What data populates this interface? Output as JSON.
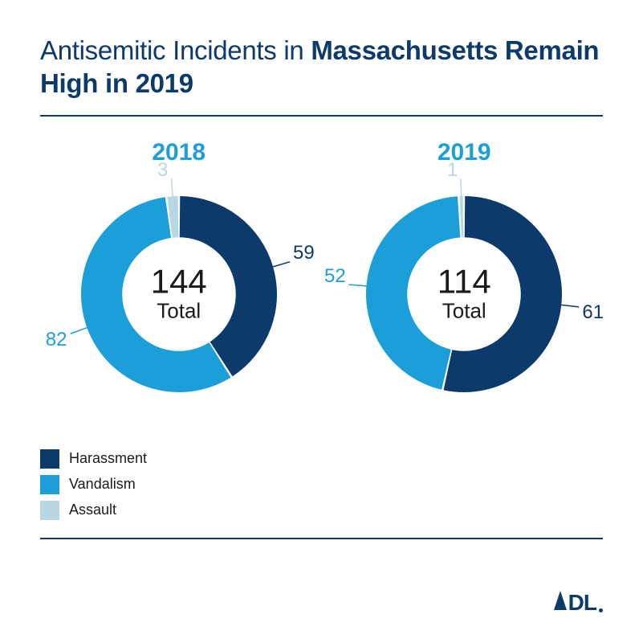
{
  "title": {
    "prefix": "Antisemitic Incidents in ",
    "bold": "Massachusetts Remain High in 2019"
  },
  "colors": {
    "harassment": "#0c3a6a",
    "vandalism": "#1c9ed9",
    "assault": "#b9d6e3",
    "title_color": "#0c3a6a",
    "year_color": "#1c9ed9",
    "rule_color": "#0c3a6a",
    "text_color": "#1a1a1a",
    "background": "#ffffff"
  },
  "typography": {
    "title_fontsize": 33,
    "year_fontsize": 30,
    "center_big_fontsize": 42,
    "center_small_fontsize": 26,
    "callout_fontsize": 24,
    "legend_fontsize": 18
  },
  "donut": {
    "outer_radius": 122,
    "inner_ratio": 0.58,
    "gap_deg": 1.2,
    "start_angle_deg": 0
  },
  "charts": [
    {
      "year": "2018",
      "total_value": "144",
      "total_label": "Total",
      "slices": [
        {
          "key": "harassment",
          "value": 59,
          "callout_color": "#0c3a6a"
        },
        {
          "key": "vandalism",
          "value": 82,
          "callout_color": "#1c9ed9"
        },
        {
          "key": "assault",
          "value": 3,
          "callout_color": "#b9d6e3"
        }
      ]
    },
    {
      "year": "2019",
      "total_value": "114",
      "total_label": "Total",
      "slices": [
        {
          "key": "harassment",
          "value": 61,
          "callout_color": "#0c3a6a"
        },
        {
          "key": "vandalism",
          "value": 52,
          "callout_color": "#1c9ed9"
        },
        {
          "key": "assault",
          "value": 1,
          "callout_color": "#b9d6e3"
        }
      ]
    }
  ],
  "legend": [
    {
      "key": "harassment",
      "label": "Harassment"
    },
    {
      "key": "vandalism",
      "label": "Vandalism"
    },
    {
      "key": "assault",
      "label": "Assault"
    }
  ],
  "logo_text": "DL"
}
